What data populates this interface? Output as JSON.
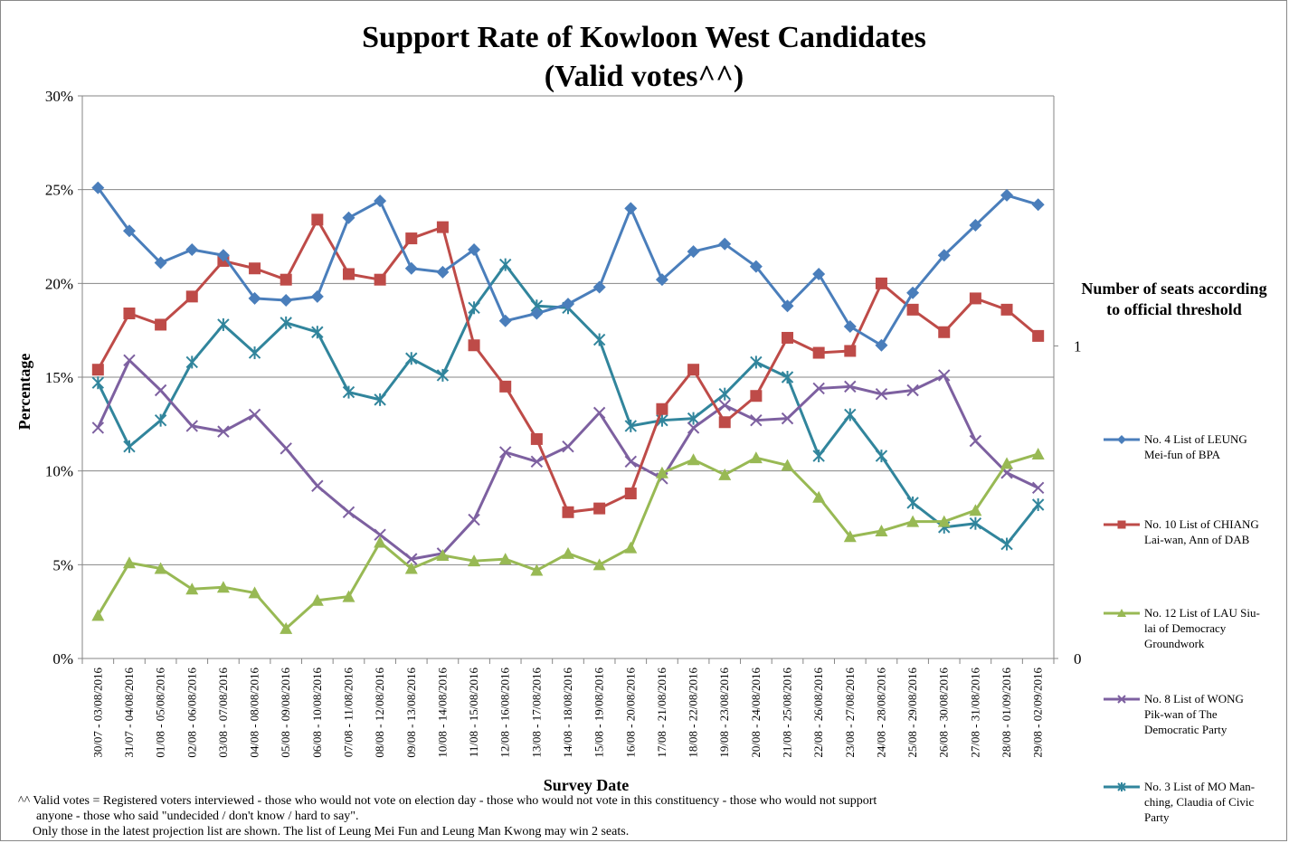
{
  "chart_data": {
    "type": "line",
    "title": [
      "Support Rate of Kowloon West Candidates",
      "(Valid votes^^)"
    ],
    "ylabel": "Percentage",
    "xlabel": "Survey Date",
    "y2label": [
      "Number of seats according",
      "to official threshold"
    ],
    "ylim": [
      0,
      30
    ],
    "yticks": [
      "0%",
      "5%",
      "10%",
      "15%",
      "20%",
      "25%",
      "30%"
    ],
    "y2lim": [
      0,
      1.8
    ],
    "y2ticks": [
      "0",
      "1"
    ],
    "grid": true,
    "legend_position": "right",
    "categories": [
      "30/07 - 03/08/2016",
      "31/07 - 04/08/2016",
      "01/08 - 05/08/2016",
      "02/08 - 06/08/2016",
      "03/08 - 07/08/2016",
      "04/08 - 08/08/2016",
      "05/08 - 09/08/2016",
      "06/08 - 10/08/2016",
      "07/08 - 11/08/2016",
      "08/08 - 12/08/2016",
      "09/08 - 13/08/2016",
      "10/08 - 14/08/2016",
      "11/08 - 15/08/2016",
      "12/08 - 16/08/2016",
      "13/08 - 17/08/2016",
      "14/08 - 18/08/2016",
      "15/08 - 19/08/2016",
      "16/08 - 20/08/2016",
      "17/08 - 21/08/2016",
      "18/08 - 22/08/2016",
      "19/08 - 23/08/2016",
      "20/08 - 24/08/2016",
      "21/08 - 25/08/2016",
      "22/08 - 26/08/2016",
      "23/08 - 27/08/2016",
      "24/08 - 28/08/2016",
      "25/08 - 29/08/2016",
      "26/08 - 30/08/2016",
      "27/08 - 31/08/2016",
      "28/08 - 01/09/2016",
      "29/08 - 02/09/2016"
    ],
    "series": [
      {
        "name": "No. 4 List of LEUNG Mei-fun of BPA",
        "legend_lines": [
          "No. 4 List of LEUNG",
          "Mei-fun of BPA"
        ],
        "color": "#4A7EBB",
        "marker": "diamond",
        "values": [
          25.1,
          22.8,
          21.1,
          21.8,
          21.5,
          19.2,
          19.1,
          19.3,
          23.5,
          24.4,
          20.8,
          20.6,
          21.8,
          18.0,
          18.4,
          18.9,
          19.8,
          24.0,
          20.2,
          21.7,
          22.1,
          20.9,
          18.8,
          20.5,
          17.7,
          16.7,
          19.5,
          21.5,
          23.1,
          24.7,
          24.2
        ]
      },
      {
        "name": "No. 10 List of CHIANG Lai-wan, Ann of DAB",
        "legend_lines": [
          "No. 10 List of CHIANG",
          "Lai-wan, Ann of DAB"
        ],
        "color": "#BE4B48",
        "marker": "square",
        "values": [
          15.4,
          18.4,
          17.8,
          19.3,
          21.2,
          20.8,
          20.2,
          23.4,
          20.5,
          20.2,
          22.4,
          23.0,
          16.7,
          14.5,
          11.7,
          7.8,
          8.0,
          8.8,
          13.3,
          15.4,
          12.6,
          14.0,
          17.1,
          16.3,
          16.4,
          20.0,
          18.6,
          17.4,
          19.2,
          18.6,
          17.2
        ]
      },
      {
        "name": "No. 12 List of LAU Siu-lai of Democracy Groundwork",
        "legend_lines": [
          "No. 12 List of LAU Siu-",
          "lai of Democracy",
          "Groundwork"
        ],
        "color": "#98B954",
        "marker": "triangle",
        "values": [
          2.3,
          5.1,
          4.8,
          3.7,
          3.8,
          3.5,
          1.6,
          3.1,
          3.3,
          6.2,
          4.8,
          5.5,
          5.2,
          5.3,
          4.7,
          5.6,
          5.0,
          5.9,
          9.9,
          10.6,
          9.8,
          10.7,
          10.3,
          8.6,
          6.5,
          6.8,
          7.3,
          7.3,
          7.9,
          10.4,
          10.9
        ]
      },
      {
        "name": "No. 8 List of WONG Pik-wan of The Democratic Party",
        "legend_lines": [
          "No. 8 List of WONG",
          "Pik-wan of The",
          "Democratic Party"
        ],
        "color": "#7D60A0",
        "marker": "x",
        "values": [
          12.3,
          15.9,
          14.3,
          12.4,
          12.1,
          13.0,
          11.2,
          9.2,
          7.8,
          6.6,
          5.3,
          5.6,
          7.4,
          11.0,
          10.5,
          11.3,
          13.1,
          10.5,
          9.6,
          12.3,
          13.5,
          12.7,
          12.8,
          14.4,
          14.5,
          14.1,
          14.3,
          15.1,
          11.6,
          9.9,
          9.1
        ]
      },
      {
        "name": "No. 3 List of MO Man-ching, Claudia of Civic Party",
        "legend_lines": [
          "No. 3 List of MO Man-",
          "ching, Claudia of Civic",
          "Party"
        ],
        "color": "#31859C",
        "marker": "asterisk",
        "values": [
          14.7,
          11.3,
          12.7,
          15.8,
          17.8,
          16.3,
          17.9,
          17.4,
          14.2,
          13.8,
          16.0,
          15.1,
          18.7,
          21.0,
          18.8,
          18.7,
          17.0,
          12.4,
          12.7,
          12.8,
          14.1,
          15.8,
          15.0,
          10.8,
          13.0,
          10.8,
          8.3,
          7.0,
          7.2,
          6.1,
          8.2
        ]
      }
    ]
  },
  "footnote": {
    "line1": "^^ Valid votes = Registered voters interviewed - those who would not vote on election day - those who would not vote in this constituency - those who would not support",
    "line2": "anyone - those who said \"undecided  / don't know  / hard to say\".",
    "line3": "Only those in the latest projection list are shown. The list of Leung Mei Fun and Leung Man Kwong  may win 2 seats."
  }
}
